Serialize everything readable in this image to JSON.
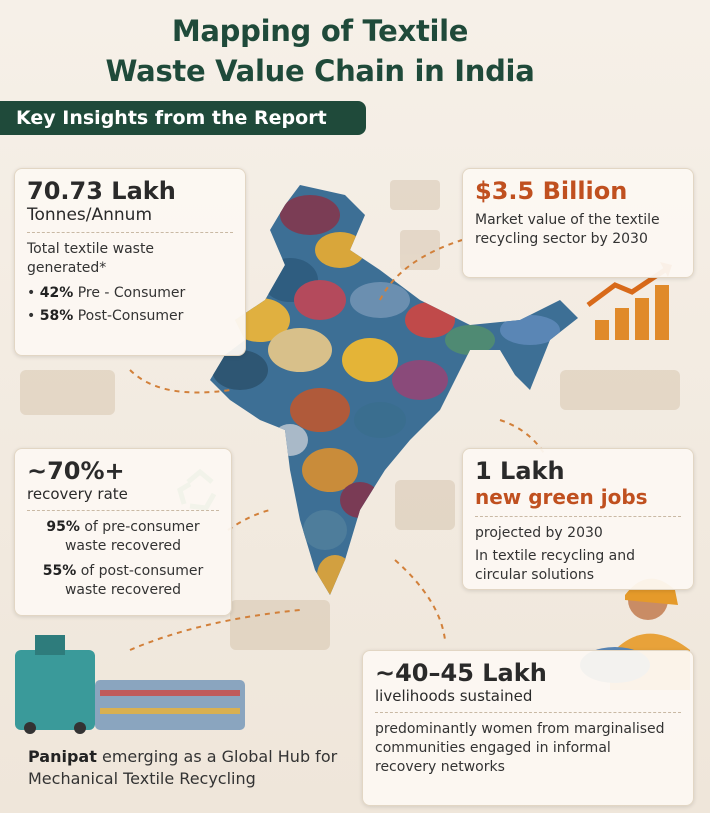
{
  "header": {
    "title_lines": [
      "Mapping of Textile",
      "Waste Value Chain in India"
    ],
    "subtitle": "Key Insights from the Report"
  },
  "waste_card": {
    "headline": "70.73 Lakh",
    "unit": "Tonnes/Annum",
    "description": "Total textile waste generated*",
    "bullets": [
      {
        "bold": "42%",
        "text": "Pre - Consumer"
      },
      {
        "bold": "58%",
        "text": "Post-Consumer"
      }
    ]
  },
  "market_card": {
    "headline": "$3.5 Billion",
    "description": "Market value of the textile recycling sector by 2030"
  },
  "recovery_card": {
    "headline": "~70%+",
    "unit": "recovery rate",
    "items": [
      {
        "bold": "95%",
        "text": "of pre-consumer waste recovered"
      },
      {
        "bold": "55%",
        "text": "of post-consumer waste recovered"
      }
    ]
  },
  "jobs_card": {
    "headline": "1 Lakh",
    "unit": "new green jobs",
    "lines": [
      "projected by 2030",
      "In textile recycling and circular solutions"
    ]
  },
  "livelihood_card": {
    "headline": "~40–45 Lakh",
    "unit": "livelihoods sustained",
    "description": "predominantly women from marginalised communities engaged in informal recovery networks"
  },
  "panipat": {
    "bold": "Panipat",
    "text": "emerging as a Global Hub for Mechanical Textile Recycling"
  }
}
